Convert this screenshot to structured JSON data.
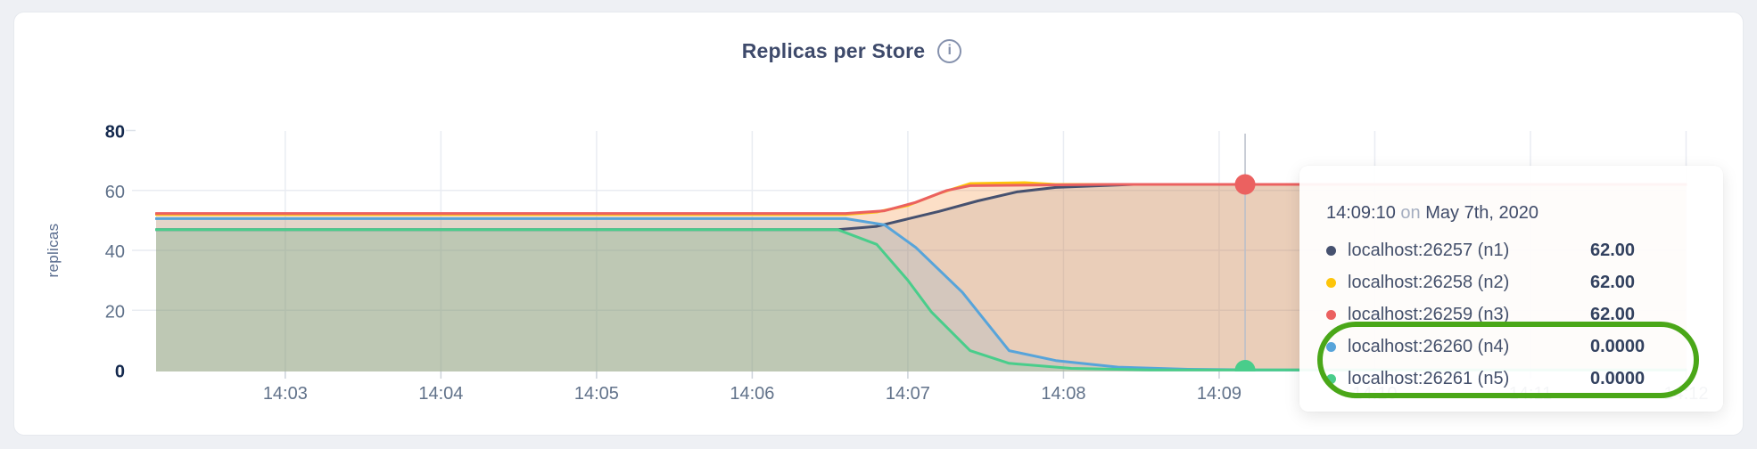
{
  "header": {
    "title": "Replicas per Store",
    "info_icon": "i"
  },
  "chart_data": {
    "type": "area",
    "title": "Replicas per Store",
    "xlabel": "",
    "ylabel": "replicas",
    "x_unit": "time of day on May 7th, 2020 (HH:MM)",
    "ylim": [
      0,
      90
    ],
    "x_domain_minutes_after_1400": [
      2.17,
      12
    ],
    "grid": true,
    "legend_position": "tooltip-only",
    "x_ticks": [
      {
        "t": 3,
        "label": "14:03"
      },
      {
        "t": 4,
        "label": "14:04"
      },
      {
        "t": 5,
        "label": "14:05"
      },
      {
        "t": 6,
        "label": "14:06"
      },
      {
        "t": 7,
        "label": "14:07"
      },
      {
        "t": 8,
        "label": "14:08"
      },
      {
        "t": 9,
        "label": "14:09"
      },
      {
        "t": 10,
        "label": "14:10"
      },
      {
        "t": 11,
        "label": "14:11"
      },
      {
        "t": 12,
        "label": "14:12"
      }
    ],
    "y_ticks": [
      {
        "v": 0,
        "label": "0",
        "emphasis": true
      },
      {
        "v": 20,
        "label": "20",
        "emphasis": false
      },
      {
        "v": 40,
        "label": "40",
        "emphasis": false
      },
      {
        "v": 60,
        "label": "60",
        "emphasis": false
      },
      {
        "v": 80,
        "label": "80",
        "emphasis": true
      }
    ],
    "series": [
      {
        "name": "localhost:26257 (n1)",
        "color": "#46516f",
        "fill_opacity": 0.13,
        "points": [
          [
            2.17,
            46.9
          ],
          [
            6.55,
            46.9
          ],
          [
            6.8,
            48
          ],
          [
            7.0,
            50.5
          ],
          [
            7.2,
            53
          ],
          [
            7.45,
            56.5
          ],
          [
            7.7,
            59.5
          ],
          [
            7.95,
            61
          ],
          [
            8.45,
            62
          ],
          [
            12,
            62
          ]
        ]
      },
      {
        "name": "localhost:26258 (n2)",
        "color": "#fdc50a",
        "fill_opacity": 0.14,
        "points": [
          [
            2.17,
            52
          ],
          [
            6.6,
            52
          ],
          [
            6.8,
            52.8
          ],
          [
            7.0,
            55
          ],
          [
            7.2,
            59
          ],
          [
            7.4,
            62.3
          ],
          [
            7.75,
            62.6
          ],
          [
            7.95,
            62
          ],
          [
            12,
            62
          ]
        ]
      },
      {
        "name": "localhost:26259 (n3)",
        "color": "#eb6160",
        "fill_opacity": 0.16,
        "points": [
          [
            2.17,
            52.3
          ],
          [
            6.6,
            52.3
          ],
          [
            6.85,
            53.2
          ],
          [
            7.05,
            56
          ],
          [
            7.25,
            60
          ],
          [
            7.4,
            61.6
          ],
          [
            7.8,
            61.8
          ],
          [
            8.3,
            62
          ],
          [
            12,
            62
          ]
        ]
      },
      {
        "name": "localhost:26260 (n4)",
        "color": "#57a4da",
        "fill_opacity": 0.15,
        "points": [
          [
            2.17,
            50.6
          ],
          [
            6.6,
            50.6
          ],
          [
            6.85,
            48.5
          ],
          [
            7.05,
            41
          ],
          [
            7.35,
            26
          ],
          [
            7.65,
            6.5
          ],
          [
            7.95,
            3.2
          ],
          [
            8.35,
            1
          ],
          [
            8.8,
            0.3
          ],
          [
            9.2,
            0.1
          ],
          [
            12,
            0.1
          ]
        ]
      },
      {
        "name": "localhost:26261 (n5)",
        "color": "#49cd8b",
        "fill_opacity": 0.16,
        "points": [
          [
            2.17,
            46.9
          ],
          [
            6.55,
            46.9
          ],
          [
            6.8,
            42
          ],
          [
            7.0,
            30
          ],
          [
            7.15,
            19.5
          ],
          [
            7.4,
            6.5
          ],
          [
            7.65,
            2.3
          ],
          [
            8.05,
            0.6
          ],
          [
            8.55,
            0.1
          ],
          [
            12,
            0.1
          ]
        ]
      }
    ],
    "hover": {
      "t": 9.1667,
      "time_label": "14:09:10",
      "dots": [
        {
          "series_index": 2,
          "value": 62,
          "color": "#eb6160"
        },
        {
          "series_index": 4,
          "value": 0,
          "color": "#49cd8b"
        }
      ]
    }
  },
  "tooltip": {
    "time": "14:09:10",
    "connector": "on",
    "date": "May 7th, 2020",
    "rows": [
      {
        "color": "#46516f",
        "label": "localhost:26257 (n1)",
        "value": "62.00"
      },
      {
        "color": "#fdc50a",
        "label": "localhost:26258 (n2)",
        "value": "62.00"
      },
      {
        "color": "#eb6160",
        "label": "localhost:26259 (n3)",
        "value": "62.00"
      },
      {
        "color": "#57a4da",
        "label": "localhost:26260 (n4)",
        "value": "0.0000"
      },
      {
        "color": "#49cd8b",
        "label": "localhost:26261 (n5)",
        "value": "0.0000"
      }
    ]
  },
  "annotation": {
    "color": "#4aa718",
    "circled_rows": [
      "localhost:26260 (n4)",
      "localhost:26261 (n5)"
    ]
  }
}
